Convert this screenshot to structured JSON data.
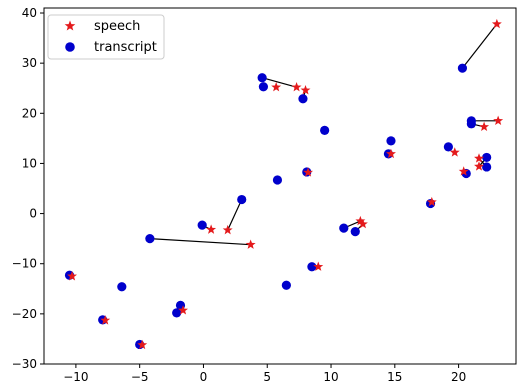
{
  "chart_data": {
    "type": "scatter",
    "xlim": [
      -12.5,
      24.5
    ],
    "ylim": [
      -30,
      41
    ],
    "x_ticks": [
      -10,
      -5,
      0,
      5,
      10,
      15,
      20
    ],
    "y_ticks": [
      -30,
      -20,
      -10,
      0,
      10,
      20,
      30,
      40
    ],
    "grid": false,
    "legend_position": "top-left",
    "series": [
      {
        "name": "speech",
        "marker": "star",
        "color": "#e41a1c",
        "points": [
          [
            -10.3,
            -12.5
          ],
          [
            -7.7,
            -21.3
          ],
          [
            -4.8,
            -26.2
          ],
          [
            -1.6,
            -19.3
          ],
          [
            0.6,
            -3.2
          ],
          [
            1.9,
            -3.3
          ],
          [
            3.7,
            -6.2
          ],
          [
            5.7,
            25.2
          ],
          [
            7.3,
            25.2
          ],
          [
            8.0,
            24.6
          ],
          [
            8.2,
            8.2
          ],
          [
            9.0,
            -10.6
          ],
          [
            12.3,
            -1.5
          ],
          [
            12.5,
            -2.1
          ],
          [
            14.7,
            11.9
          ],
          [
            17.9,
            2.3
          ],
          [
            19.7,
            12.2
          ],
          [
            20.4,
            8.4
          ],
          [
            21.6,
            11.0
          ],
          [
            21.6,
            9.4
          ],
          [
            22.0,
            17.3
          ],
          [
            23.0,
            37.8
          ],
          [
            23.1,
            18.5
          ]
        ]
      },
      {
        "name": "transcript",
        "marker": "circle",
        "color": "#0000cc",
        "points": [
          [
            -10.5,
            -12.3
          ],
          [
            -7.9,
            -21.2
          ],
          [
            -6.4,
            -14.6
          ],
          [
            -5.0,
            -26.1
          ],
          [
            -4.2,
            -5.0
          ],
          [
            -2.1,
            -19.8
          ],
          [
            -1.8,
            -18.3
          ],
          [
            -0.1,
            -2.3
          ],
          [
            3.0,
            2.8
          ],
          [
            4.6,
            27.1
          ],
          [
            4.7,
            25.3
          ],
          [
            5.8,
            6.7
          ],
          [
            6.5,
            -14.3
          ],
          [
            7.8,
            22.9
          ],
          [
            8.1,
            8.3
          ],
          [
            8.5,
            -10.6
          ],
          [
            9.5,
            16.6
          ],
          [
            11.0,
            -2.9
          ],
          [
            11.9,
            -3.6
          ],
          [
            14.5,
            11.9
          ],
          [
            14.7,
            14.5
          ],
          [
            17.8,
            2.0
          ],
          [
            19.2,
            13.3
          ],
          [
            20.3,
            29.0
          ],
          [
            20.6,
            8.0
          ],
          [
            21.0,
            17.9
          ],
          [
            21.0,
            18.5
          ],
          [
            22.2,
            11.2
          ],
          [
            22.2,
            9.3
          ]
        ]
      }
    ],
    "connections": [
      [
        [
          0.6,
          -3.2
        ],
        [
          -0.1,
          -2.3
        ]
      ],
      [
        [
          1.9,
          -3.3
        ],
        [
          3.0,
          2.8
        ]
      ],
      [
        [
          3.7,
          -6.2
        ],
        [
          -4.2,
          -5.0
        ]
      ],
      [
        [
          7.3,
          25.2
        ],
        [
          4.6,
          27.1
        ]
      ],
      [
        [
          8.0,
          24.6
        ],
        [
          7.8,
          22.9
        ]
      ],
      [
        [
          12.3,
          -1.5
        ],
        [
          11.0,
          -2.9
        ]
      ],
      [
        [
          12.5,
          -2.1
        ],
        [
          11.9,
          -3.6
        ]
      ],
      [
        [
          23.0,
          37.8
        ],
        [
          20.3,
          29.0
        ]
      ],
      [
        [
          23.1,
          18.5
        ],
        [
          21.0,
          18.5
        ]
      ],
      [
        [
          22.0,
          17.3
        ],
        [
          21.0,
          17.9
        ]
      ],
      [
        [
          21.6,
          11.0
        ],
        [
          22.2,
          9.3
        ]
      ],
      [
        [
          21.6,
          9.4
        ],
        [
          22.2,
          11.2
        ]
      ]
    ]
  }
}
